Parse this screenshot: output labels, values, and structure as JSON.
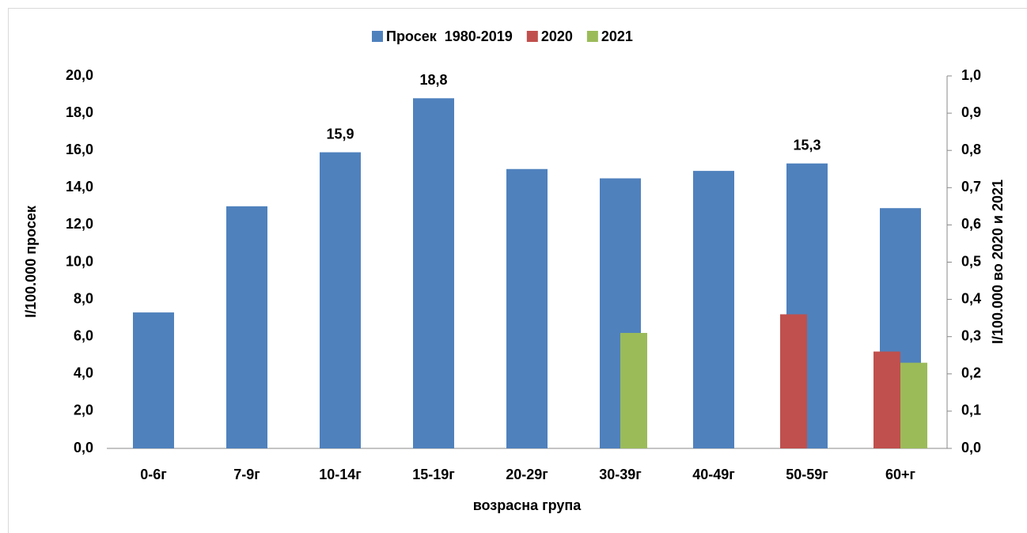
{
  "chart_data": {
    "type": "bar",
    "categories": [
      "0-6г",
      "7-9г",
      "10-14г",
      "15-19г",
      "20-29г",
      "30-39г",
      "40-49г",
      "50-59г",
      "60+г"
    ],
    "series": [
      {
        "name": "Просек  1980-2019",
        "color": "#4f81bd",
        "values": [
          7.3,
          13.0,
          15.9,
          18.8,
          15.0,
          14.5,
          14.9,
          15.3,
          12.9
        ],
        "value_labels": [
          null,
          null,
          "15,9",
          "18,8",
          null,
          null,
          null,
          "15,3",
          null
        ]
      },
      {
        "name": "2020",
        "color": "#c0504d",
        "axis": "y2",
        "values": [
          null,
          null,
          null,
          null,
          null,
          null,
          null,
          0.36,
          0.26
        ]
      },
      {
        "name": "2021",
        "color": "#9bbb59",
        "axis": "y2",
        "values": [
          null,
          null,
          null,
          null,
          null,
          0.31,
          null,
          null,
          0.23
        ]
      }
    ],
    "xlabel": "возрасна група",
    "ylabel": "I/100.000 просек",
    "y2label": "I/100.000 во 2020 и 2021",
    "ylim": [
      0,
      20
    ],
    "yticks": [
      {
        "value": 0,
        "label": "0,0"
      },
      {
        "value": 2,
        "label": "2,0"
      },
      {
        "value": 4,
        "label": "4,0"
      },
      {
        "value": 6,
        "label": "6,0"
      },
      {
        "value": 8,
        "label": "8,0"
      },
      {
        "value": 10,
        "label": "10,0"
      },
      {
        "value": 12,
        "label": "12,0"
      },
      {
        "value": 14,
        "label": "14,0"
      },
      {
        "value": 16,
        "label": "16,0"
      },
      {
        "value": 18,
        "label": "18,0"
      },
      {
        "value": 20,
        "label": "20,0"
      }
    ],
    "y2lim": [
      0,
      1
    ],
    "y2ticks": [
      {
        "value": 0,
        "label": "0,0"
      },
      {
        "value": 0.1,
        "label": "0,1"
      },
      {
        "value": 0.2,
        "label": "0,2"
      },
      {
        "value": 0.3,
        "label": "0,3"
      },
      {
        "value": 0.4,
        "label": "0,4"
      },
      {
        "value": 0.5,
        "label": "0,5"
      },
      {
        "value": 0.6,
        "label": "0,6"
      },
      {
        "value": 0.7,
        "label": "0,7"
      },
      {
        "value": 0.8,
        "label": "0,8"
      },
      {
        "value": 0.9,
        "label": "0,9"
      },
      {
        "value": 1,
        "label": "1,0"
      }
    ],
    "legend": "top"
  }
}
